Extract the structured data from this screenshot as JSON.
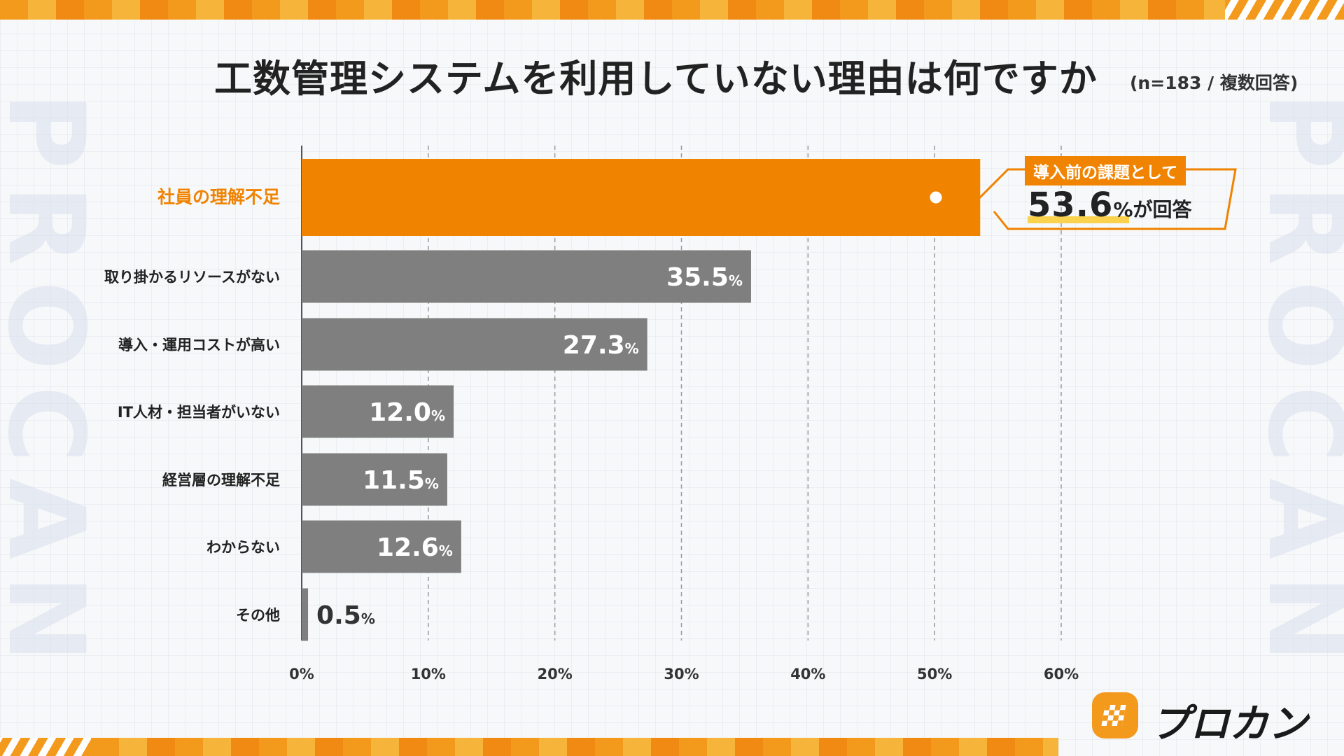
{
  "title": "工数管理システムを利用していない理由は何ですか",
  "subtitle": "(n=183 / 複数回答)",
  "watermark": "PROCAN",
  "callout": {
    "heading": "導入前の課題として",
    "value": "53.6",
    "suffix": "%が回答"
  },
  "logo": {
    "text": "プロカン",
    "icon": "checkered-flag-icon"
  },
  "colors": {
    "highlight": "#f08300",
    "bar": "#7f7f7f",
    "accent_yellow": "#fbd24e"
  },
  "chart_data": {
    "type": "bar",
    "orientation": "horizontal",
    "categories": [
      "社員の理解不足",
      "取り掛かるリソースがない",
      "導入・運用コストが高い",
      "IT人材・担当者がいない",
      "経営層の理解不足",
      "わからない",
      "その他"
    ],
    "values": [
      53.6,
      35.5,
      27.3,
      12.0,
      11.5,
      12.6,
      0.5
    ],
    "value_labels": [
      "",
      "35.5",
      "27.3",
      "12.0",
      "11.5",
      "12.6",
      "0.5"
    ],
    "unit": "%",
    "highlight_index": 0,
    "xlim": [
      0,
      60
    ],
    "xticks": [
      "0%",
      "10%",
      "20%",
      "30%",
      "40%",
      "50%",
      "60%"
    ],
    "grid": true
  }
}
